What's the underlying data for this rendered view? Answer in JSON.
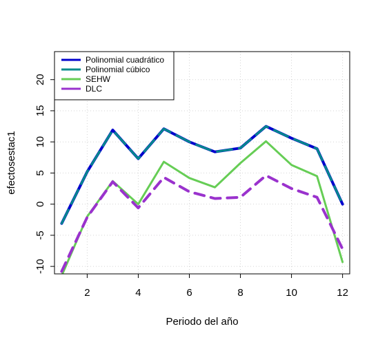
{
  "chart_data": {
    "type": "line",
    "title": "",
    "xlabel": "Periodo del año",
    "ylabel": "efectosestac1",
    "x": [
      1,
      2,
      3,
      4,
      5,
      6,
      7,
      8,
      9,
      10,
      11,
      12
    ],
    "xlim": [
      0.72,
      12.28
    ],
    "ylim": [
      -11.2,
      24.5
    ],
    "xticks": [
      2,
      4,
      6,
      8,
      10,
      12
    ],
    "yticks": [
      -10,
      -5,
      0,
      5,
      10,
      15,
      20
    ],
    "grid": true,
    "legend_position": "top-left",
    "series": [
      {
        "name": "Polinomial cuadrático",
        "color": "#0000CD",
        "dash": "solid",
        "values": [
          -3.1,
          5.2,
          11.9,
          7.3,
          12.1,
          10.0,
          8.4,
          9.0,
          12.5,
          10.6,
          8.9,
          0.0
        ]
      },
      {
        "name": "Polinomial cúbico",
        "color": "#008B8B",
        "dash": "longdash",
        "values": [
          -3.1,
          5.2,
          11.9,
          7.3,
          12.1,
          10.0,
          8.4,
          9.0,
          12.5,
          10.6,
          8.9,
          0.0
        ]
      },
      {
        "name": "SEHW",
        "color": "#66CD55",
        "dash": "solid",
        "values": [
          -11.5,
          -2.0,
          3.7,
          0.0,
          6.8,
          4.2,
          2.7,
          6.6,
          10.1,
          6.3,
          4.5,
          -9.3
        ]
      },
      {
        "name": "DLC",
        "color": "#9A32CD",
        "dash": "dashed",
        "values": [
          -10.8,
          -2.1,
          3.6,
          -0.6,
          4.3,
          2.0,
          0.9,
          1.1,
          4.6,
          2.5,
          1.1,
          -7.2
        ]
      }
    ]
  }
}
